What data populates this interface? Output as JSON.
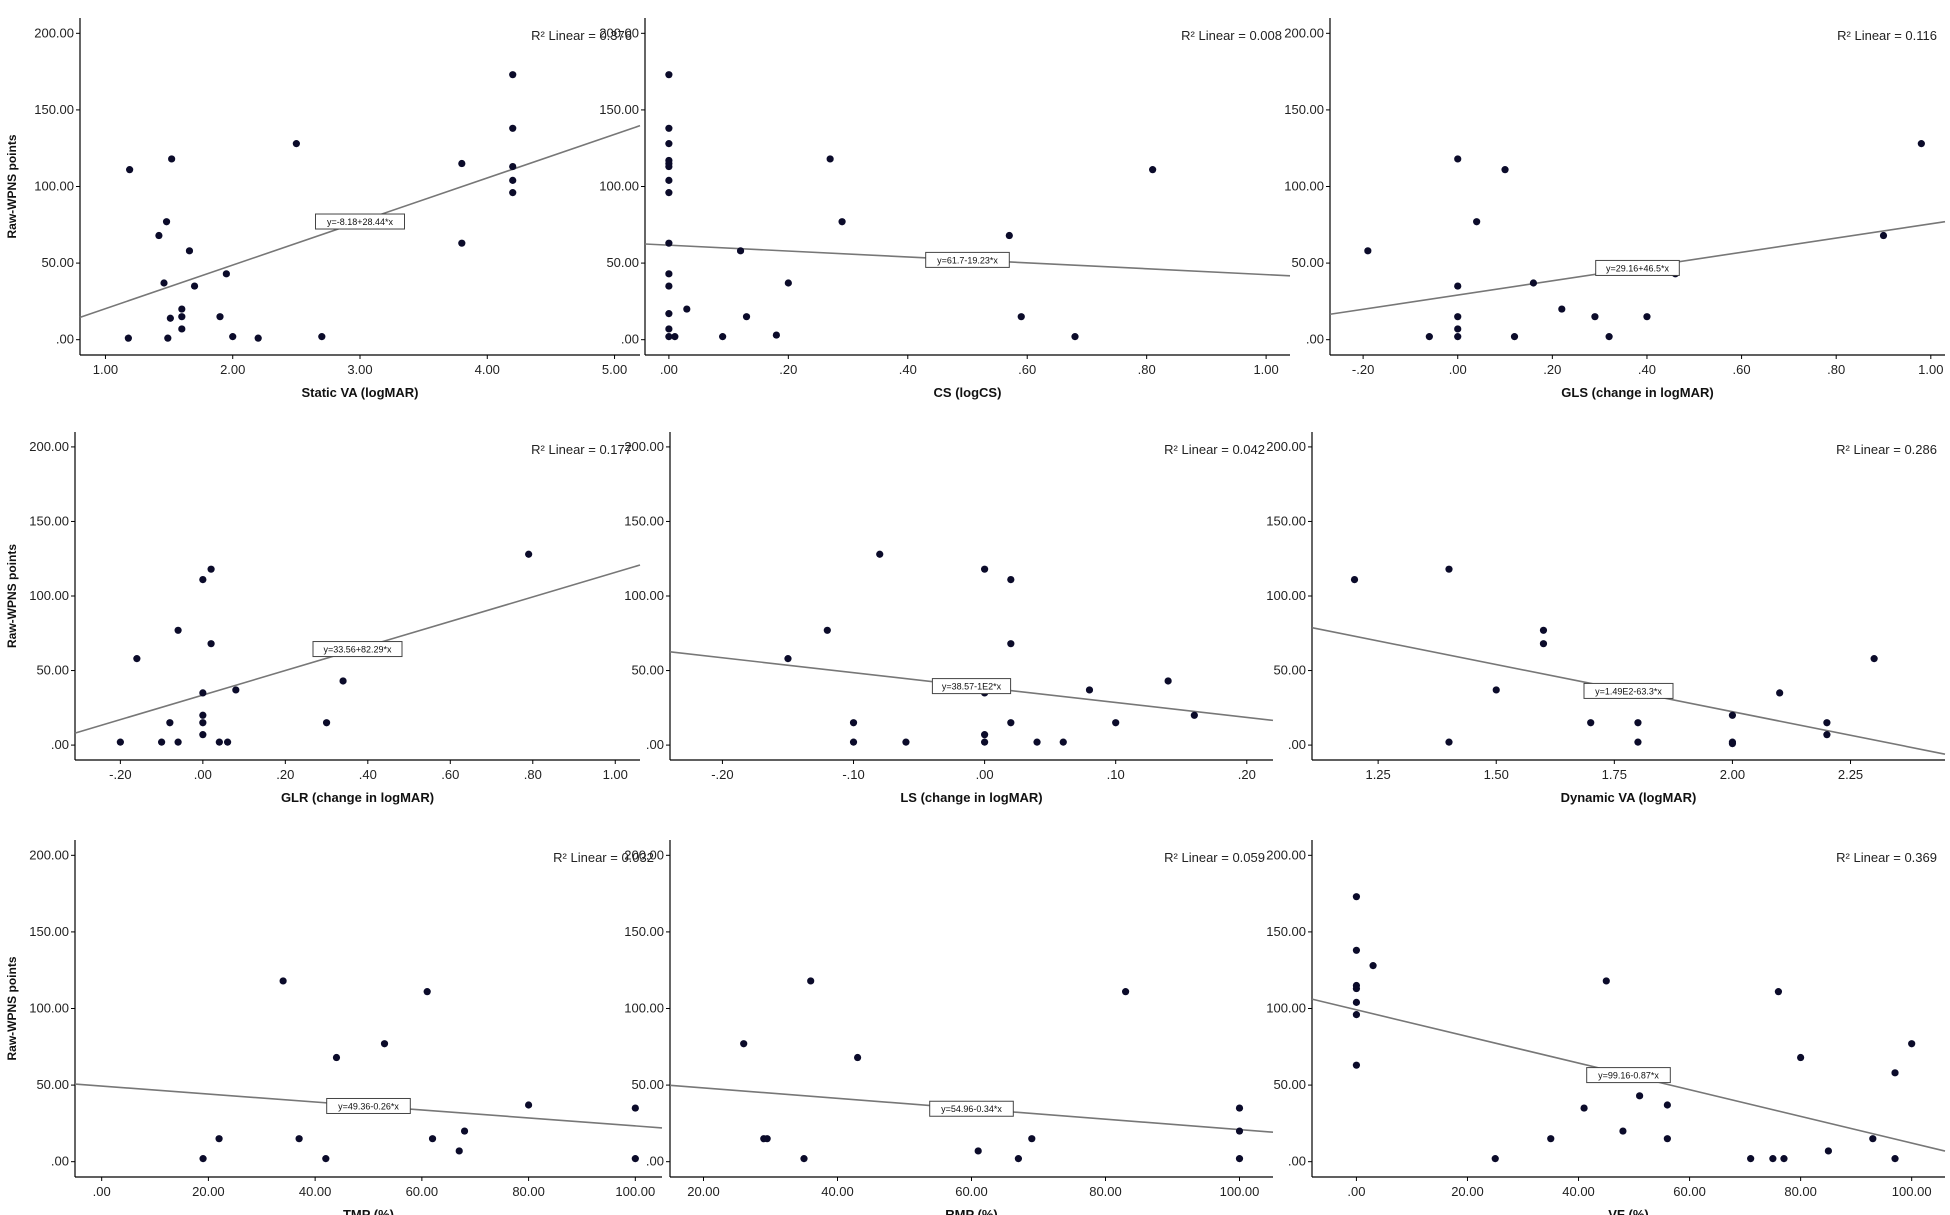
{
  "chart_data": [
    {
      "type": "scatter",
      "xlabel": "Static VA (logMAR)",
      "ylabel": "Raw-WPNS points",
      "xlim": [
        0.8,
        5.2
      ],
      "ylim": [
        -10,
        210
      ],
      "xticks": [
        "1.00",
        "2.00",
        "3.00",
        "4.00",
        "5.00"
      ],
      "xtick_values": [
        1,
        2,
        3,
        4,
        5
      ],
      "yticks": [
        ".00",
        "50.00",
        "100.00",
        "150.00",
        "200.00"
      ],
      "ytick_values": [
        0,
        50,
        100,
        150,
        200
      ],
      "r2_label": "R² Linear = 0.376",
      "equation": "y=-8.18+28.44*x",
      "fit": {
        "intercept": -8.18,
        "slope": 28.44
      },
      "points": [
        [
          1.18,
          1
        ],
        [
          1.19,
          111
        ],
        [
          1.42,
          68
        ],
        [
          1.46,
          37
        ],
        [
          1.48,
          77
        ],
        [
          1.49,
          1
        ],
        [
          1.51,
          14
        ],
        [
          1.52,
          118
        ],
        [
          1.6,
          20
        ],
        [
          1.6,
          15
        ],
        [
          1.6,
          7
        ],
        [
          1.66,
          58
        ],
        [
          1.7,
          35
        ],
        [
          1.9,
          15
        ],
        [
          1.95,
          43
        ],
        [
          2.0,
          2
        ],
        [
          2.2,
          1
        ],
        [
          2.5,
          128
        ],
        [
          2.7,
          2
        ],
        [
          3.8,
          115
        ],
        [
          3.8,
          63
        ],
        [
          4.2,
          173
        ],
        [
          4.2,
          138
        ],
        [
          4.2,
          113
        ],
        [
          4.2,
          104
        ],
        [
          4.2,
          96
        ]
      ]
    },
    {
      "type": "scatter",
      "xlabel": "CS (logCS)",
      "ylabel": "",
      "xlim": [
        -0.04,
        1.04
      ],
      "ylim": [
        -10,
        210
      ],
      "xticks": [
        ".00",
        ".20",
        ".40",
        ".60",
        ".80",
        "1.00"
      ],
      "xtick_values": [
        0,
        0.2,
        0.4,
        0.6,
        0.8,
        1.0
      ],
      "yticks": [
        ".00",
        "50.00",
        "100.00",
        "150.00",
        "200.00"
      ],
      "ytick_values": [
        0,
        50,
        100,
        150,
        200
      ],
      "r2_label": "R² Linear = 0.008",
      "equation": "y=61.7-19.23*x",
      "fit": {
        "intercept": 61.7,
        "slope": -19.23
      },
      "points": [
        [
          0,
          173
        ],
        [
          0,
          138
        ],
        [
          0,
          128
        ],
        [
          0,
          117
        ],
        [
          0,
          115
        ],
        [
          0,
          113
        ],
        [
          0,
          104
        ],
        [
          0,
          96
        ],
        [
          0,
          63
        ],
        [
          0,
          43
        ],
        [
          0,
          35
        ],
        [
          0,
          17
        ],
        [
          0,
          7
        ],
        [
          0,
          2
        ],
        [
          0.01,
          2
        ],
        [
          0.03,
          20
        ],
        [
          0.09,
          2
        ],
        [
          0.12,
          58
        ],
        [
          0.13,
          15
        ],
        [
          0.18,
          3
        ],
        [
          0.2,
          37
        ],
        [
          0.27,
          118
        ],
        [
          0.29,
          77
        ],
        [
          0.57,
          68
        ],
        [
          0.59,
          15
        ],
        [
          0.68,
          2
        ],
        [
          0.81,
          111
        ]
      ]
    },
    {
      "type": "scatter",
      "xlabel": "GLS (change in logMAR)",
      "ylabel": "",
      "xlim": [
        -0.27,
        1.03
      ],
      "ylim": [
        -10,
        210
      ],
      "xticks": [
        "-.20",
        ".00",
        ".20",
        ".40",
        ".60",
        ".80",
        "1.00"
      ],
      "xtick_values": [
        -0.2,
        0,
        0.2,
        0.4,
        0.6,
        0.8,
        1.0
      ],
      "yticks": [
        ".00",
        "50.00",
        "100.00",
        "150.00",
        "200.00"
      ],
      "ytick_values": [
        0,
        50,
        100,
        150,
        200
      ],
      "r2_label": "R² Linear = 0.116",
      "equation": "y=29.16+46.5*x",
      "fit": {
        "intercept": 29.16,
        "slope": 46.5
      },
      "points": [
        [
          -0.19,
          58
        ],
        [
          -0.06,
          2
        ],
        [
          0,
          118
        ],
        [
          0,
          35
        ],
        [
          0,
          15
        ],
        [
          0,
          7
        ],
        [
          0,
          2
        ],
        [
          0.04,
          77
        ],
        [
          0.1,
          111
        ],
        [
          0.12,
          2
        ],
        [
          0.16,
          37
        ],
        [
          0.22,
          20
        ],
        [
          0.29,
          15
        ],
        [
          0.32,
          2
        ],
        [
          0.4,
          15
        ],
        [
          0.46,
          43
        ],
        [
          0.9,
          68
        ],
        [
          0.98,
          128
        ]
      ]
    },
    {
      "type": "scatter",
      "xlabel": "GLR (change in logMAR)",
      "ylabel": "Raw-WPNS points",
      "xlim": [
        -0.31,
        1.06
      ],
      "ylim": [
        -10,
        210
      ],
      "xticks": [
        "-.20",
        ".00",
        ".20",
        ".40",
        ".60",
        ".80",
        "1.00"
      ],
      "xtick_values": [
        -0.2,
        0,
        0.2,
        0.4,
        0.6,
        0.8,
        1.0
      ],
      "yticks": [
        ".00",
        "50.00",
        "100.00",
        "150.00",
        "200.00"
      ],
      "ytick_values": [
        0,
        50,
        100,
        150,
        200
      ],
      "r2_label": "R² Linear = 0.177",
      "equation": "y=33.56+82.29*x",
      "fit": {
        "intercept": 33.56,
        "slope": 82.29
      },
      "points": [
        [
          -0.2,
          2
        ],
        [
          -0.16,
          58
        ],
        [
          -0.1,
          2
        ],
        [
          -0.08,
          15
        ],
        [
          -0.06,
          77
        ],
        [
          -0.06,
          2
        ],
        [
          0,
          111
        ],
        [
          0,
          35
        ],
        [
          0,
          20
        ],
        [
          0,
          15
        ],
        [
          0,
          7
        ],
        [
          0.02,
          118
        ],
        [
          0.02,
          68
        ],
        [
          0.04,
          2
        ],
        [
          0.06,
          2
        ],
        [
          0.08,
          37
        ],
        [
          0.3,
          15
        ],
        [
          0.34,
          43
        ],
        [
          0.79,
          128
        ]
      ]
    },
    {
      "type": "scatter",
      "xlabel": "LS (change in logMAR)",
      "ylabel": "",
      "xlim": [
        -0.24,
        0.22
      ],
      "ylim": [
        -10,
        210
      ],
      "xticks": [
        "-.20",
        "-.10",
        ".00",
        ".10",
        ".20"
      ],
      "xtick_values": [
        -0.2,
        -0.1,
        0,
        0.1,
        0.2
      ],
      "yticks": [
        ".00",
        "50.00",
        "100.00",
        "150.00",
        "200.00"
      ],
      "ytick_values": [
        0,
        50,
        100,
        150,
        200
      ],
      "r2_label": "R² Linear = 0.042",
      "equation": "y=38.57-1E2*x",
      "fit": {
        "intercept": 38.57,
        "slope": -100
      },
      "points": [
        [
          -0.15,
          58
        ],
        [
          -0.12,
          77
        ],
        [
          -0.1,
          15
        ],
        [
          -0.1,
          2
        ],
        [
          -0.08,
          128
        ],
        [
          -0.06,
          2
        ],
        [
          0,
          118
        ],
        [
          0,
          35
        ],
        [
          0,
          7
        ],
        [
          0,
          2
        ],
        [
          0.02,
          111
        ],
        [
          0.02,
          68
        ],
        [
          0.02,
          15
        ],
        [
          0.04,
          2
        ],
        [
          0.06,
          2
        ],
        [
          0.08,
          37
        ],
        [
          0.1,
          15
        ],
        [
          0.14,
          43
        ],
        [
          0.16,
          20
        ]
      ]
    },
    {
      "type": "scatter",
      "xlabel": "Dynamic VA (logMAR)",
      "ylabel": "",
      "xlim": [
        1.11,
        2.45
      ],
      "ylim": [
        -10,
        210
      ],
      "xticks": [
        "1.25",
        "1.50",
        "1.75",
        "2.00",
        "2.25"
      ],
      "xtick_values": [
        1.25,
        1.5,
        1.75,
        2.0,
        2.25
      ],
      "yticks": [
        ".00",
        "50.00",
        "100.00",
        "150.00",
        "200.00"
      ],
      "ytick_values": [
        0,
        50,
        100,
        150,
        200
      ],
      "r2_label": "R² Linear = 0.286",
      "equation": "y=1.49E2-63.3*x",
      "fit": {
        "intercept": 149,
        "slope": -63.3
      },
      "points": [
        [
          1.2,
          111
        ],
        [
          1.4,
          118
        ],
        [
          1.4,
          2
        ],
        [
          1.5,
          37
        ],
        [
          1.6,
          77
        ],
        [
          1.6,
          68
        ],
        [
          1.7,
          15
        ],
        [
          1.8,
          15
        ],
        [
          1.8,
          2
        ],
        [
          2.0,
          20
        ],
        [
          2.0,
          2
        ],
        [
          2.0,
          1
        ],
        [
          2.1,
          35
        ],
        [
          2.2,
          15
        ],
        [
          2.2,
          7
        ],
        [
          2.3,
          58
        ]
      ]
    },
    {
      "type": "scatter",
      "xlabel": "TMP (%)",
      "ylabel": "Raw-WPNS points",
      "xlim": [
        -5,
        105
      ],
      "ylim": [
        -10,
        210
      ],
      "xticks": [
        ".00",
        "20.00",
        "40.00",
        "60.00",
        "80.00",
        "100.00"
      ],
      "xtick_values": [
        0,
        20,
        40,
        60,
        80,
        100
      ],
      "yticks": [
        ".00",
        "50.00",
        "100.00",
        "150.00",
        "200.00"
      ],
      "ytick_values": [
        0,
        50,
        100,
        150,
        200
      ],
      "r2_label": "R² Linear = 0.032",
      "equation": "y=49.36-0.26*x",
      "fit": {
        "intercept": 49.36,
        "slope": -0.26
      },
      "points": [
        [
          19,
          2
        ],
        [
          22,
          15
        ],
        [
          34,
          118
        ],
        [
          37,
          15
        ],
        [
          42,
          2
        ],
        [
          44,
          68
        ],
        [
          53,
          77
        ],
        [
          61,
          111
        ],
        [
          62,
          15
        ],
        [
          67,
          7
        ],
        [
          68,
          20
        ],
        [
          80,
          37
        ],
        [
          100,
          35
        ],
        [
          100,
          2
        ]
      ]
    },
    {
      "type": "scatter",
      "xlabel": "RMP (%)",
      "ylabel": "",
      "xlim": [
        15,
        105
      ],
      "ylim": [
        -10,
        210
      ],
      "xticks": [
        "20.00",
        "40.00",
        "60.00",
        "80.00",
        "100.00"
      ],
      "xtick_values": [
        20,
        40,
        60,
        80,
        100
      ],
      "yticks": [
        ".00",
        "50.00",
        "100.00",
        "150.00",
        "200.00"
      ],
      "ytick_values": [
        0,
        50,
        100,
        150,
        200
      ],
      "r2_label": "R² Linear = 0.059",
      "equation": "y=54.96-0.34*x",
      "fit": {
        "intercept": 54.96,
        "slope": -0.34
      },
      "points": [
        [
          26,
          77
        ],
        [
          29,
          15
        ],
        [
          29.5,
          15
        ],
        [
          35,
          2
        ],
        [
          36,
          118
        ],
        [
          43,
          68
        ],
        [
          61,
          7
        ],
        [
          67,
          2
        ],
        [
          69,
          15
        ],
        [
          83,
          111
        ],
        [
          100,
          35
        ],
        [
          100,
          20
        ],
        [
          100,
          2
        ]
      ]
    },
    {
      "type": "scatter",
      "xlabel": "VF (%)",
      "ylabel": "",
      "xlim": [
        -8,
        106
      ],
      "ylim": [
        -10,
        210
      ],
      "xticks": [
        ".00",
        "20.00",
        "40.00",
        "60.00",
        "80.00",
        "100.00"
      ],
      "xtick_values": [
        0,
        20,
        40,
        60,
        80,
        100
      ],
      "yticks": [
        ".00",
        "50.00",
        "100.00",
        "150.00",
        "200.00"
      ],
      "ytick_values": [
        0,
        50,
        100,
        150,
        200
      ],
      "r2_label": "R² Linear = 0.369",
      "equation": "y=99.16-0.87*x",
      "fit": {
        "intercept": 99.16,
        "slope": -0.87
      },
      "points": [
        [
          0,
          173
        ],
        [
          0,
          138
        ],
        [
          0,
          115
        ],
        [
          0,
          113
        ],
        [
          0,
          104
        ],
        [
          0,
          96
        ],
        [
          0,
          63
        ],
        [
          3,
          128
        ],
        [
          25,
          2
        ],
        [
          35,
          15
        ],
        [
          41,
          35
        ],
        [
          45,
          118
        ],
        [
          48,
          20
        ],
        [
          51,
          43
        ],
        [
          56,
          37
        ],
        [
          56,
          15
        ],
        [
          71,
          2
        ],
        [
          75,
          2
        ],
        [
          76,
          111
        ],
        [
          77,
          2
        ],
        [
          80,
          68
        ],
        [
          85,
          7
        ],
        [
          93,
          15
        ],
        [
          97,
          58
        ],
        [
          97,
          2
        ],
        [
          100,
          77
        ]
      ]
    }
  ]
}
